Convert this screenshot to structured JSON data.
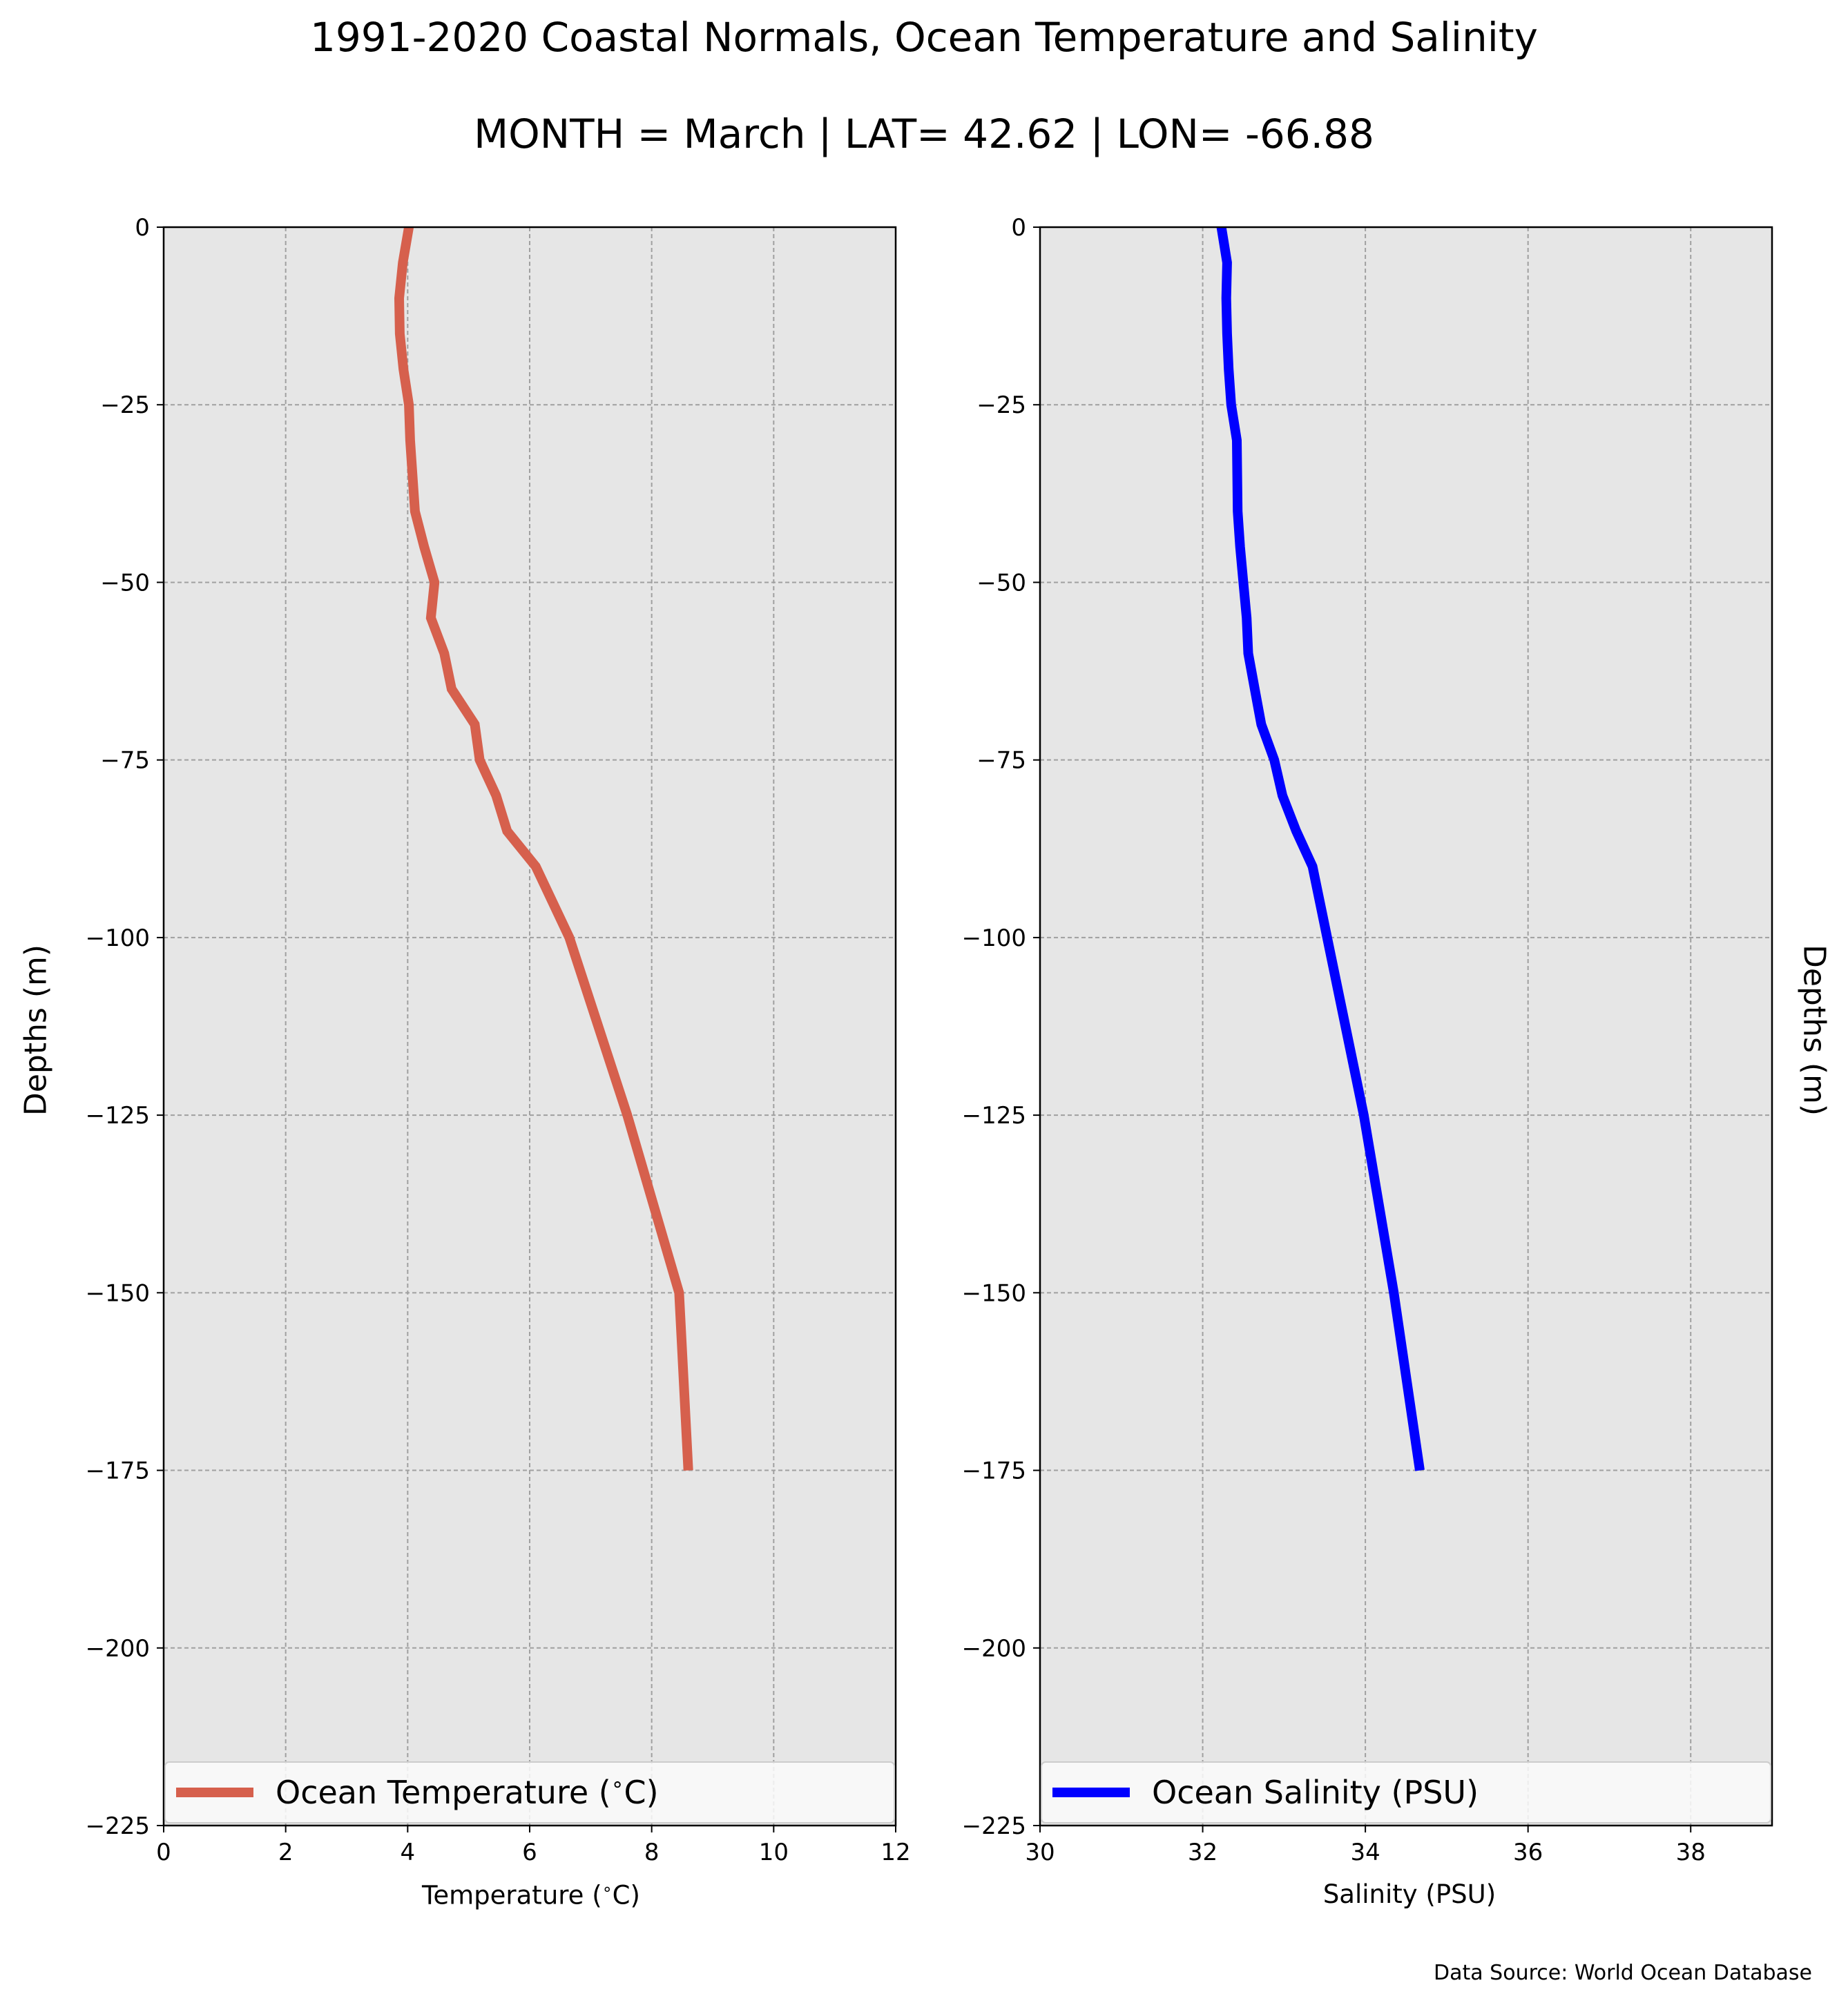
{
  "title_line1": "1991-2020 Coastal Normals, Ocean Temperature and Salinity",
  "title_line2": "MONTH = March | LAT= 42.62 | LON= -66.88",
  "ylabel_left": "Depths (m)",
  "ylabel_right": "Depths (m)",
  "source": "Data Source: World Ocean Database",
  "colors": {
    "background": "#e6e6e6",
    "grid": "#a0a0a0",
    "temperature": "#d6604d",
    "salinity": "#0000ff"
  },
  "chart_data": [
    {
      "type": "line",
      "xlabel": "Temperature ($^\\circ$C)",
      "ylabel": "Depths (m)",
      "xlim": [
        0,
        12
      ],
      "ylim": [
        -225,
        0
      ],
      "xticks": [
        "0",
        "2",
        "4",
        "6",
        "8",
        "10",
        "12"
      ],
      "yticks": [
        "0",
        "−25",
        "−50",
        "−75",
        "−100",
        "−125",
        "−150",
        "−175",
        "−200",
        "−225"
      ],
      "grid": true,
      "legend_position": "lower center",
      "series": [
        {
          "name": "Ocean Temperature ($^\\circ$C)",
          "x": [
            4.02,
            3.92,
            3.86,
            3.87,
            3.93,
            4.02,
            4.04,
            4.12,
            4.27,
            4.44,
            4.38,
            4.6,
            4.72,
            5.1,
            5.18,
            5.45,
            5.63,
            6.1,
            6.65,
            7.6,
            8.45,
            8.6
          ],
          "y": [
            0,
            -5,
            -10,
            -15,
            -20,
            -25,
            -30,
            -40,
            -45,
            -50,
            -55,
            -60,
            -65,
            -70,
            -75,
            -80,
            -85,
            -90,
            -100,
            -125,
            -150,
            -175
          ]
        }
      ]
    },
    {
      "type": "line",
      "xlabel": "Salinity (PSU)",
      "ylabel": "Depths (m)",
      "xlim": [
        30,
        39
      ],
      "ylim": [
        -225,
        0
      ],
      "xticks": [
        "30",
        "32",
        "34",
        "36",
        "38"
      ],
      "yticks": [
        "0",
        "−25",
        "−50",
        "−75",
        "−100",
        "−125",
        "−150",
        "−175",
        "−200",
        "−225"
      ],
      "grid": true,
      "legend_position": "lower center",
      "series": [
        {
          "name": "Ocean Salinity (PSU)",
          "x": [
            32.23,
            32.3,
            32.29,
            32.3,
            32.32,
            32.35,
            32.42,
            32.43,
            32.46,
            32.5,
            32.54,
            32.56,
            32.64,
            32.72,
            32.88,
            32.98,
            33.15,
            33.35,
            33.53,
            33.98,
            34.35,
            34.67
          ],
          "y": [
            0,
            -5,
            -10,
            -15,
            -20,
            -25,
            -30,
            -40,
            -45,
            -50,
            -55,
            -60,
            -65,
            -70,
            -75,
            -80,
            -85,
            -90,
            -100,
            -125,
            -150,
            -175
          ]
        }
      ]
    }
  ]
}
